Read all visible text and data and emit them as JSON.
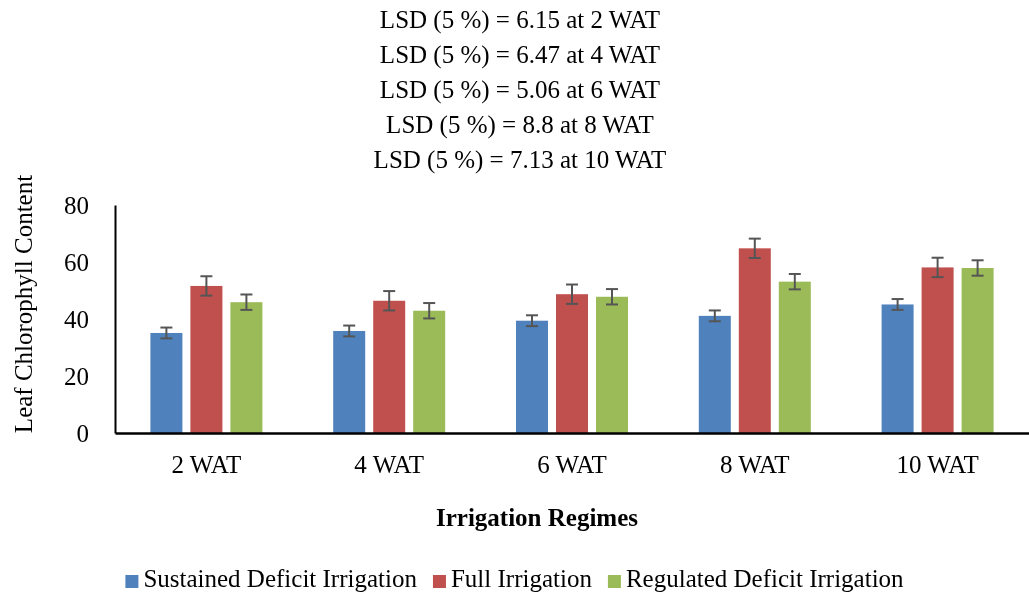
{
  "chart_data": {
    "type": "bar",
    "annotations": [
      "LSD (5 %) = 6.15 at 2 WAT",
      "LSD (5 %) = 6.47 at 4 WAT",
      "LSD (5 %) = 5.06 at 6 WAT",
      "LSD (5 %) = 8.8 at 8 WAT",
      "LSD (5 %) = 7.13 at 10 WAT"
    ],
    "xlabel": "Irrigation Regimes",
    "ylabel": "Leaf Chlorophyll Content",
    "categories": [
      "2 WAT",
      "4 WAT",
      "6 WAT",
      "8 WAT",
      "10 WAT"
    ],
    "series": [
      {
        "name": "Sustained Deficit Irrigation",
        "color": "#4f81bd",
        "values": [
          35.1,
          35.8,
          39.4,
          41.1,
          45.1
        ],
        "errors": [
          1.9,
          1.9,
          1.9,
          1.9,
          1.9
        ]
      },
      {
        "name": "Full Irrigation",
        "color": "#c0504d",
        "values": [
          51.6,
          46.4,
          48.7,
          64.8,
          58.1
        ],
        "errors": [
          3.4,
          3.4,
          3.4,
          3.4,
          3.4
        ]
      },
      {
        "name": "Regulated Deficit Irrigation",
        "color": "#9bbb59",
        "values": [
          45.9,
          42.9,
          47.8,
          53.1,
          57.9
        ],
        "errors": [
          2.7,
          2.7,
          2.7,
          2.7,
          2.7
        ]
      }
    ],
    "ylim": [
      0,
      80
    ],
    "yticks": [
      0,
      20,
      40,
      60,
      80
    ],
    "grid": false,
    "legend": "bottom"
  }
}
